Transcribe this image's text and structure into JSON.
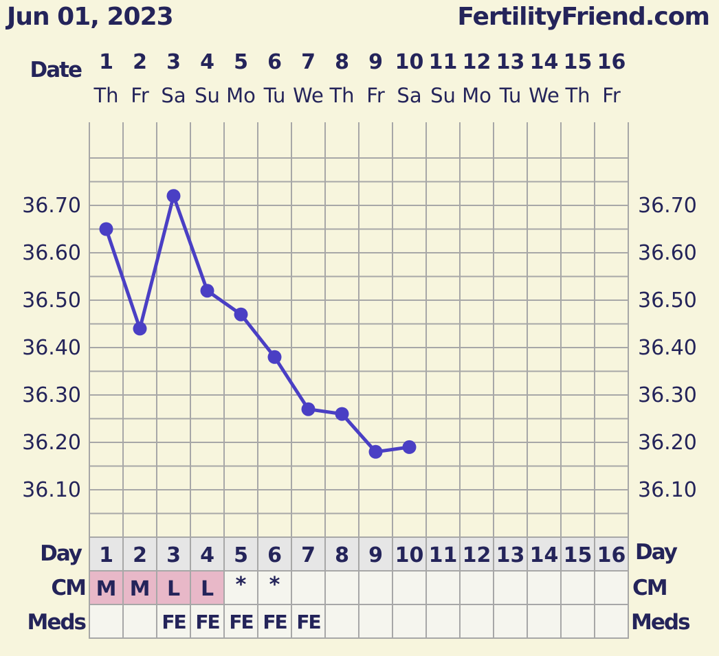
{
  "header": {
    "title": "Jun 01, 2023",
    "site": "FertilityFriend.com"
  },
  "labels": {
    "date": "Date",
    "day": "Day",
    "cm": "CM",
    "meds": "Meds"
  },
  "chart_data": {
    "type": "line",
    "x": [
      "1",
      "2",
      "3",
      "4",
      "5",
      "6",
      "7",
      "8",
      "9",
      "10",
      "11",
      "12",
      "13",
      "14",
      "15",
      "16"
    ],
    "day_of_week": [
      "Th",
      "Fr",
      "Sa",
      "Su",
      "Mo",
      "Tu",
      "We",
      "Th",
      "Fr",
      "Sa",
      "Su",
      "Mo",
      "Tu",
      "We",
      "Th",
      "Fr"
    ],
    "y_ticks": [
      "36.70",
      "36.60",
      "36.50",
      "36.40",
      "36.30",
      "36.20",
      "36.10"
    ],
    "ylim": [
      36.0,
      36.8
    ],
    "grid": true,
    "series": [
      {
        "values": [
          36.65,
          36.44,
          36.72,
          36.52,
          36.47,
          36.38,
          36.27,
          36.26,
          36.18,
          36.19,
          null,
          null,
          null,
          null,
          null,
          null
        ]
      }
    ],
    "cycle_days": [
      "1",
      "2",
      "3",
      "4",
      "5",
      "6",
      "7",
      "8",
      "9",
      "10",
      "11",
      "12",
      "13",
      "14",
      "15",
      "16"
    ],
    "cm": [
      "M",
      "M",
      "L",
      "L",
      "*",
      "*",
      "",
      "",
      "",
      "",
      "",
      "",
      "",
      "",
      "",
      ""
    ],
    "meds": [
      "",
      "",
      "FE",
      "FE",
      "FE",
      "FE",
      "FE",
      "",
      "",
      "",
      "",
      "",
      "",
      "",
      "",
      ""
    ],
    "line_color": "#4a3fc4",
    "cm_highlight_color": "#e8b8c8"
  }
}
